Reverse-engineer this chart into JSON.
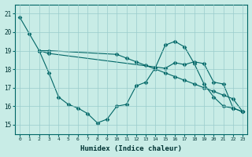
{
  "xlabel": "Humidex (Indice chaleur)",
  "background_color": "#c8ece6",
  "grid_color": "#99cccc",
  "line_color": "#006666",
  "xlim": [
    -0.5,
    23.5
  ],
  "ylim": [
    14.5,
    21.5
  ],
  "yticks": [
    15,
    16,
    17,
    18,
    19,
    20,
    21
  ],
  "xticks": [
    0,
    1,
    2,
    3,
    4,
    5,
    6,
    7,
    8,
    9,
    10,
    11,
    12,
    13,
    14,
    15,
    16,
    17,
    18,
    19,
    20,
    21,
    22,
    23
  ],
  "line1_x": [
    0,
    1,
    2,
    3,
    10,
    11,
    12,
    13,
    14,
    15,
    16,
    17,
    18,
    19,
    20,
    21,
    22,
    23
  ],
  "line1_y": [
    20.8,
    19.9,
    19.0,
    19.0,
    18.8,
    18.6,
    18.4,
    18.2,
    18.0,
    17.8,
    17.6,
    17.4,
    17.2,
    17.0,
    16.8,
    16.6,
    16.4,
    15.7
  ],
  "line2_x": [
    2,
    3,
    4,
    5,
    6,
    7,
    8,
    9,
    10,
    11,
    12,
    13,
    14,
    15,
    16,
    17,
    18,
    19,
    20,
    21,
    22,
    23
  ],
  "line2_y": [
    19.0,
    17.8,
    16.5,
    16.1,
    15.9,
    15.6,
    15.1,
    15.3,
    16.0,
    16.1,
    17.1,
    17.3,
    18.1,
    19.3,
    19.5,
    19.2,
    18.3,
    17.2,
    16.5,
    16.0,
    15.9,
    15.7
  ],
  "line3_x": [
    2,
    3,
    15,
    16,
    17,
    18,
    19,
    20,
    21,
    22,
    23
  ],
  "line3_y": [
    19.0,
    18.85,
    18.05,
    18.35,
    18.25,
    18.4,
    18.3,
    17.3,
    17.2,
    15.9,
    15.7
  ]
}
